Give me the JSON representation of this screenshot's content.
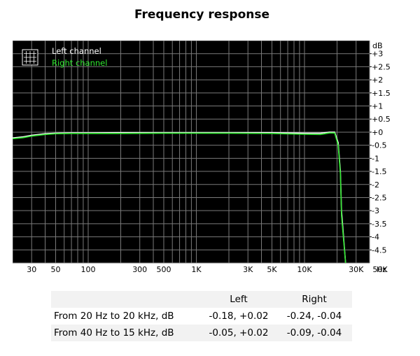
{
  "title": "Frequency response",
  "chart_data": {
    "type": "line",
    "xscale": "log",
    "xlim": [
      20,
      40000
    ],
    "ylim": [
      -5,
      3.5
    ],
    "yunit": "dB",
    "xunit": "Hz",
    "yticks": [
      "+3",
      "+2.5",
      "+2",
      "+1.5",
      "+1",
      "+0.5",
      "+0",
      "-0.5",
      "-1",
      "-1.5",
      "-2",
      "-2.5",
      "-3",
      "-3.5",
      "-4",
      "-4.5"
    ],
    "ytick_values": [
      3,
      2.5,
      2,
      1.5,
      1,
      0.5,
      0,
      -0.5,
      -1,
      -1.5,
      -2,
      -2.5,
      -3,
      -3.5,
      -4,
      -4.5
    ],
    "xticks": [
      "30",
      "50",
      "100",
      "300",
      "500",
      "1K",
      "3K",
      "5K",
      "10K",
      "30K",
      "50K"
    ],
    "xtick_values": [
      30,
      50,
      100,
      300,
      500,
      1000,
      3000,
      5000,
      10000,
      30000,
      50000
    ],
    "legend_icon": "grid-icon",
    "legend_placement": "top-left",
    "grid": true,
    "background": "#000000",
    "grid_color": "#7a7a7a",
    "series": [
      {
        "name": "Left channel",
        "color": "#ffffff",
        "x": [
          20,
          25,
          30,
          40,
          50,
          70,
          100,
          200,
          500,
          1000,
          2000,
          5000,
          10000,
          14000,
          17000,
          19000,
          20500,
          21500,
          22000,
          24000
        ],
        "y": [
          -0.22,
          -0.18,
          -0.12,
          -0.06,
          -0.04,
          -0.03,
          -0.03,
          -0.02,
          -0.02,
          -0.02,
          -0.02,
          -0.02,
          -0.04,
          -0.04,
          0.0,
          0.0,
          -0.4,
          -1.5,
          -3.0,
          -5.0
        ]
      },
      {
        "name": "Right channel",
        "color": "#2ee62e",
        "x": [
          20,
          25,
          30,
          40,
          50,
          70,
          100,
          200,
          500,
          1000,
          2000,
          5000,
          10000,
          14000,
          17000,
          19000,
          20500,
          21500,
          22000,
          24000
        ],
        "y": [
          -0.25,
          -0.21,
          -0.15,
          -0.09,
          -0.06,
          -0.05,
          -0.05,
          -0.05,
          -0.04,
          -0.04,
          -0.04,
          -0.05,
          -0.08,
          -0.09,
          -0.03,
          -0.03,
          -0.5,
          -1.6,
          -3.2,
          -5.0
        ]
      }
    ]
  },
  "stats_table": {
    "headers": [
      "",
      "Left",
      "Right"
    ],
    "rows": [
      [
        "From 20 Hz to 20 kHz, dB",
        "-0.18, +0.02",
        "-0.24, -0.04"
      ],
      [
        "From 40 Hz to 15 kHz, dB",
        "-0.05, +0.02",
        "-0.09, -0.04"
      ]
    ]
  }
}
